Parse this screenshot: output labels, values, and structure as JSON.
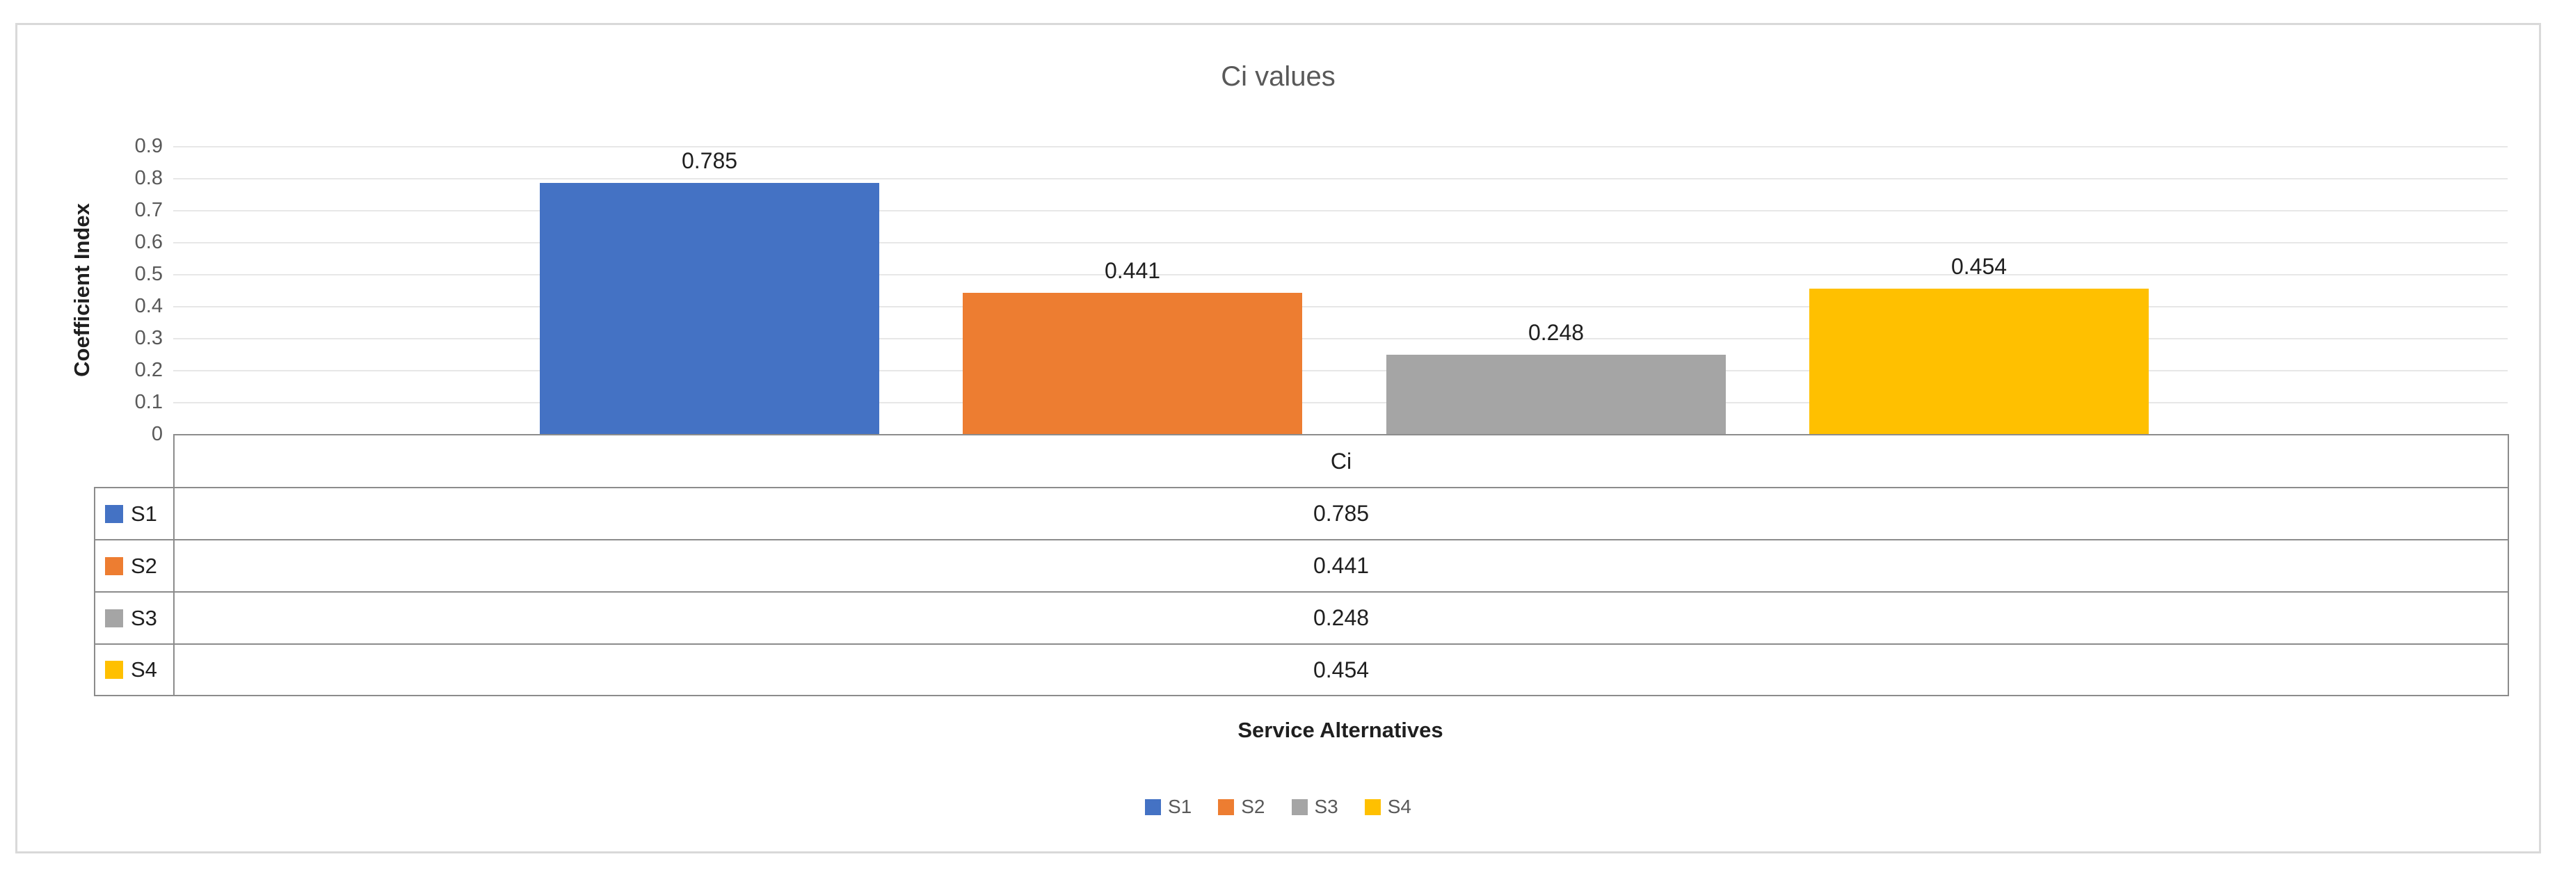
{
  "chart": {
    "title": "Ci values",
    "y_axis_title": "Coefficient Index",
    "x_axis_title": "Service Alternatives",
    "table_header": "Ci",
    "y_ticks": [
      "0.9",
      "0.8",
      "0.7",
      "0.6",
      "0.5",
      "0.4",
      "0.3",
      "0.2",
      "0.1",
      "0"
    ]
  },
  "chart_data": {
    "type": "bar",
    "categories": [
      "Ci"
    ],
    "series": [
      {
        "name": "S1",
        "value": 0.785,
        "label": "0.785",
        "color": "#4472C4"
      },
      {
        "name": "S2",
        "value": 0.441,
        "label": "0.441",
        "color": "#ED7D31"
      },
      {
        "name": "S3",
        "value": 0.248,
        "label": "0.248",
        "color": "#A5A5A5"
      },
      {
        "name": "S4",
        "value": 0.454,
        "label": "0.454",
        "color": "#FFC000"
      }
    ],
    "title": "Ci values",
    "xlabel": "Service Alternatives",
    "ylabel": "Coefficient Index",
    "ylim": [
      0,
      0.9
    ],
    "y_tick_step": 0.1,
    "gridlines": true,
    "legend_position": "bottom",
    "data_table_shown": true,
    "data_labels_shown": true
  }
}
